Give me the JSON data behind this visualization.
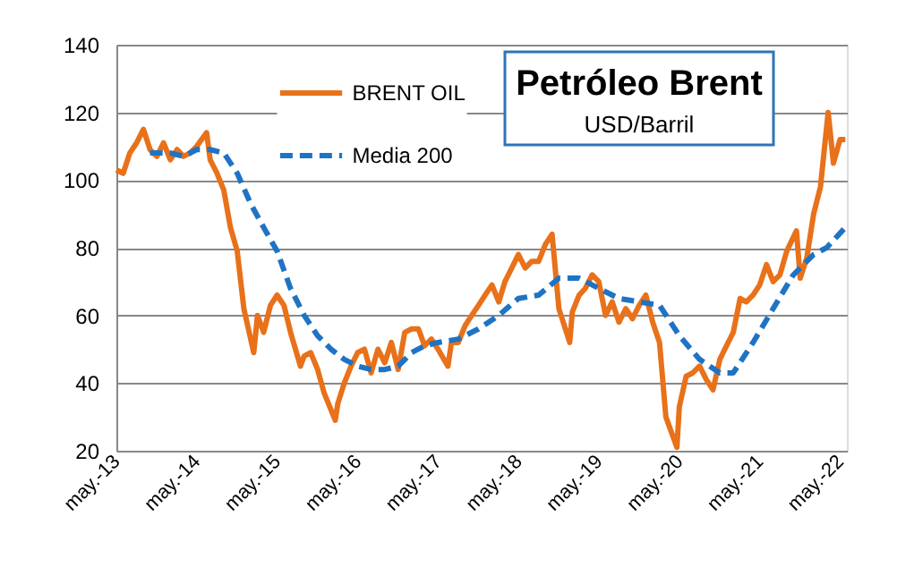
{
  "chart_data": {
    "type": "line",
    "title": "Petróleo Brent",
    "subtitle": "USD/Barril",
    "xlim": [
      "2013-05-01",
      "2022-06-01"
    ],
    "xticks": [
      {
        "value": "2013-05-01",
        "label": "may.-13"
      },
      {
        "value": "2014-05-01",
        "label": "may.-14"
      },
      {
        "value": "2015-05-01",
        "label": "may.-15"
      },
      {
        "value": "2016-05-01",
        "label": "may.-16"
      },
      {
        "value": "2017-05-01",
        "label": "may.-17"
      },
      {
        "value": "2018-05-01",
        "label": "may.-18"
      },
      {
        "value": "2019-05-01",
        "label": "may.-19"
      },
      {
        "value": "2020-05-01",
        "label": "may.-20"
      },
      {
        "value": "2021-05-01",
        "label": "may.-21"
      },
      {
        "value": "2022-05-01",
        "label": "may.-22"
      }
    ],
    "ylim": [
      20,
      140
    ],
    "yticks": [
      20,
      40,
      60,
      80,
      100,
      120,
      140
    ],
    "grid": "y",
    "legend": "top",
    "series": [
      {
        "name": "BRENT OIL",
        "color": "#e8711a",
        "line_style": "solid",
        "x": [
          "2013-05-01",
          "2013-06-01",
          "2013-07-01",
          "2013-08-01",
          "2013-09-01",
          "2013-10-01",
          "2013-11-01",
          "2013-12-01",
          "2014-01-01",
          "2014-02-01",
          "2014-03-01",
          "2014-04-01",
          "2014-05-01",
          "2014-06-15",
          "2014-07-01",
          "2014-08-01",
          "2014-09-01",
          "2014-10-01",
          "2014-11-01",
          "2014-12-01",
          "2015-01-15",
          "2015-02-01",
          "2015-03-01",
          "2015-04-01",
          "2015-05-01",
          "2015-06-01",
          "2015-07-01",
          "2015-08-15",
          "2015-09-01",
          "2015-10-01",
          "2015-11-01",
          "2015-12-01",
          "2016-01-20",
          "2016-02-01",
          "2016-03-01",
          "2016-04-01",
          "2016-05-01",
          "2016-06-01",
          "2016-07-01",
          "2016-08-01",
          "2016-09-01",
          "2016-10-01",
          "2016-11-01",
          "2016-12-01",
          "2017-01-01",
          "2017-02-01",
          "2017-03-01",
          "2017-04-01",
          "2017-05-01",
          "2017-06-15",
          "2017-07-01",
          "2017-08-01",
          "2017-09-01",
          "2017-10-01",
          "2017-11-01",
          "2017-12-01",
          "2018-01-01",
          "2018-02-01",
          "2018-03-01",
          "2018-04-01",
          "2018-05-01",
          "2018-06-01",
          "2018-07-01",
          "2018-08-01",
          "2018-09-01",
          "2018-10-01",
          "2018-11-01",
          "2018-12-20",
          "2019-01-01",
          "2019-02-01",
          "2019-03-01",
          "2019-04-01",
          "2019-05-01",
          "2019-06-01",
          "2019-07-01",
          "2019-08-01",
          "2019-09-01",
          "2019-10-01",
          "2019-11-01",
          "2019-12-01",
          "2020-01-01",
          "2020-02-01",
          "2020-03-01",
          "2020-04-20",
          "2020-05-01",
          "2020-06-01",
          "2020-07-01",
          "2020-08-01",
          "2020-09-01",
          "2020-10-01",
          "2020-11-01",
          "2020-12-01",
          "2021-01-01",
          "2021-02-01",
          "2021-03-01",
          "2021-04-01",
          "2021-05-01",
          "2021-06-01",
          "2021-07-01",
          "2021-08-01",
          "2021-09-01",
          "2021-10-15",
          "2021-11-01",
          "2021-12-01",
          "2022-01-01",
          "2022-02-01",
          "2022-03-08",
          "2022-04-01",
          "2022-05-01",
          "2022-05-25"
        ],
        "values": [
          103,
          102,
          108,
          111,
          115,
          109,
          107,
          111,
          106,
          109,
          107,
          108,
          110,
          114,
          106,
          102,
          97,
          86,
          79,
          62,
          49,
          60,
          55,
          63,
          66,
          63,
          55,
          45,
          48,
          49,
          44,
          37,
          29,
          34,
          40,
          45,
          49,
          50,
          43,
          50,
          46,
          52,
          44,
          55,
          56,
          56,
          51,
          53,
          50,
          45,
          52,
          52,
          57,
          60,
          63,
          66,
          69,
          64,
          70,
          74,
          78,
          74,
          76,
          76,
          81,
          84,
          62,
          52,
          61,
          66,
          68,
          72,
          70,
          60,
          64,
          58,
          62,
          59,
          63,
          66,
          58,
          52,
          30,
          21,
          33,
          42,
          43,
          45,
          41,
          38,
          47,
          51,
          55,
          65,
          64,
          66,
          69,
          75,
          70,
          72,
          79,
          85,
          71,
          77,
          90,
          98,
          120,
          105,
          112,
          112
        ]
      },
      {
        "name": "Media 200",
        "color": "#1f73c4",
        "line_style": "dashed",
        "x": [
          "2013-10-01",
          "2014-01-01",
          "2014-03-01",
          "2014-05-01",
          "2014-07-01",
          "2014-09-01",
          "2014-11-01",
          "2015-01-01",
          "2015-03-01",
          "2015-05-01",
          "2015-07-01",
          "2015-09-01",
          "2015-11-01",
          "2016-01-01",
          "2016-03-01",
          "2016-05-01",
          "2016-07-01",
          "2016-09-01",
          "2016-11-01",
          "2017-01-01",
          "2017-03-01",
          "2017-05-01",
          "2017-08-01",
          "2017-11-01",
          "2018-02-01",
          "2018-05-01",
          "2018-08-01",
          "2018-11-01",
          "2019-02-01",
          "2019-05-01",
          "2019-08-01",
          "2019-11-01",
          "2020-02-01",
          "2020-05-01",
          "2020-08-01",
          "2020-11-01",
          "2021-01-01",
          "2021-04-01",
          "2021-07-01",
          "2021-10-01",
          "2022-01-01",
          "2022-03-01",
          "2022-05-25"
        ],
        "values": [
          108,
          108,
          107,
          109,
          109,
          108,
          102,
          93,
          86,
          79,
          68,
          60,
          54,
          50,
          47,
          45,
          44,
          44,
          45,
          49,
          51,
          52,
          53,
          56,
          60,
          65,
          66,
          71,
          71,
          68,
          65,
          64,
          63,
          54,
          47,
          43,
          43,
          52,
          62,
          72,
          78,
          80,
          86
        ]
      }
    ]
  }
}
